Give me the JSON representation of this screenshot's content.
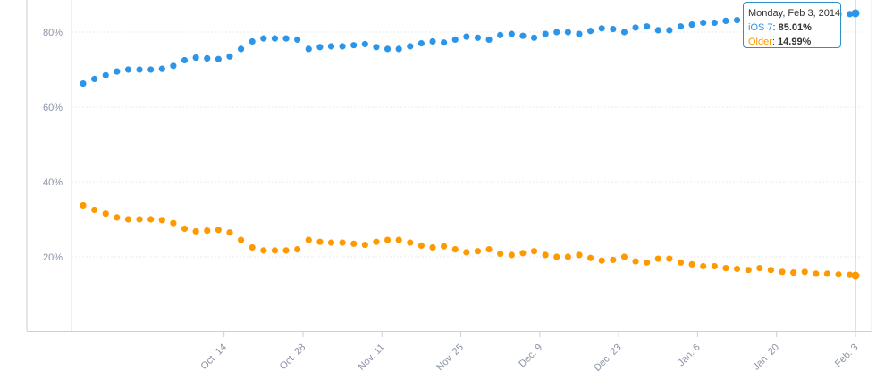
{
  "chart_data": {
    "type": "scatter",
    "title": "",
    "xlabel": "",
    "ylabel": "",
    "ylim": [
      0,
      85
    ],
    "y_ticks": [
      "20%",
      "40%",
      "60%",
      "80%"
    ],
    "x_ticks": [
      "Oct. 14",
      "Oct. 28",
      "Nov. 11",
      "Nov. 25",
      "Dec. 9",
      "Dec. 23",
      "Jan. 6",
      "Jan. 20",
      "Feb. 3"
    ],
    "x_range": [
      "2013-09-19",
      "2014-02-03"
    ],
    "grid": true,
    "colors": {
      "ios7": "#2b95e9",
      "older": "#ff9900"
    },
    "series": [
      {
        "name": "iOS 7",
        "color": "#2b95e9",
        "points": [
          [
            "2013-09-19",
            66.3
          ],
          [
            "2013-09-21",
            67.5
          ],
          [
            "2013-09-23",
            68.5
          ],
          [
            "2013-09-25",
            69.5
          ],
          [
            "2013-09-27",
            70.0
          ],
          [
            "2013-09-29",
            70.0
          ],
          [
            "2013-10-01",
            70.0
          ],
          [
            "2013-10-03",
            70.2
          ],
          [
            "2013-10-05",
            71.0
          ],
          [
            "2013-10-07",
            72.5
          ],
          [
            "2013-10-09",
            73.2
          ],
          [
            "2013-10-11",
            73.0
          ],
          [
            "2013-10-13",
            72.8
          ],
          [
            "2013-10-15",
            73.5
          ],
          [
            "2013-10-17",
            75.5
          ],
          [
            "2013-10-19",
            77.5
          ],
          [
            "2013-10-21",
            78.3
          ],
          [
            "2013-10-23",
            78.3
          ],
          [
            "2013-10-25",
            78.3
          ],
          [
            "2013-10-27",
            78.0
          ],
          [
            "2013-10-29",
            75.5
          ],
          [
            "2013-10-31",
            76.0
          ],
          [
            "2013-11-02",
            76.2
          ],
          [
            "2013-11-04",
            76.2
          ],
          [
            "2013-11-06",
            76.5
          ],
          [
            "2013-11-08",
            76.8
          ],
          [
            "2013-11-10",
            76.0
          ],
          [
            "2013-11-12",
            75.5
          ],
          [
            "2013-11-14",
            75.5
          ],
          [
            "2013-11-16",
            76.2
          ],
          [
            "2013-11-18",
            77.0
          ],
          [
            "2013-11-20",
            77.5
          ],
          [
            "2013-11-22",
            77.2
          ],
          [
            "2013-11-24",
            78.0
          ],
          [
            "2013-11-26",
            78.8
          ],
          [
            "2013-11-28",
            78.5
          ],
          [
            "2013-11-30",
            78.0
          ],
          [
            "2013-12-02",
            79.2
          ],
          [
            "2013-12-04",
            79.5
          ],
          [
            "2013-12-06",
            79.0
          ],
          [
            "2013-12-08",
            78.5
          ],
          [
            "2013-12-10",
            79.5
          ],
          [
            "2013-12-12",
            80.0
          ],
          [
            "2013-12-14",
            80.0
          ],
          [
            "2013-12-16",
            79.5
          ],
          [
            "2013-12-18",
            80.3
          ],
          [
            "2013-12-20",
            81.0
          ],
          [
            "2013-12-22",
            80.8
          ],
          [
            "2013-12-24",
            80.0
          ],
          [
            "2013-12-26",
            81.2
          ],
          [
            "2013-12-28",
            81.5
          ],
          [
            "2013-12-30",
            80.5
          ],
          [
            "2014-01-01",
            80.5
          ],
          [
            "2014-01-03",
            81.5
          ],
          [
            "2014-01-05",
            82.0
          ],
          [
            "2014-01-07",
            82.5
          ],
          [
            "2014-01-09",
            82.5
          ],
          [
            "2014-01-11",
            83.0
          ],
          [
            "2014-01-13",
            83.2
          ],
          [
            "2014-01-15",
            83.5
          ],
          [
            "2014-01-17",
            83.0
          ],
          [
            "2014-01-19",
            83.5
          ],
          [
            "2014-01-21",
            84.0
          ],
          [
            "2014-01-23",
            84.2
          ],
          [
            "2014-01-25",
            84.0
          ],
          [
            "2014-01-27",
            84.5
          ],
          [
            "2014-01-29",
            84.5
          ],
          [
            "2014-01-31",
            84.7
          ],
          [
            "2014-02-02",
            84.8
          ],
          [
            "2014-02-03",
            85.01
          ]
        ]
      },
      {
        "name": "Older",
        "color": "#ff9900",
        "points": [
          [
            "2013-09-19",
            33.7
          ],
          [
            "2013-09-21",
            32.5
          ],
          [
            "2013-09-23",
            31.5
          ],
          [
            "2013-09-25",
            30.5
          ],
          [
            "2013-09-27",
            30.0
          ],
          [
            "2013-09-29",
            30.0
          ],
          [
            "2013-10-01",
            30.0
          ],
          [
            "2013-10-03",
            29.8
          ],
          [
            "2013-10-05",
            29.0
          ],
          [
            "2013-10-07",
            27.5
          ],
          [
            "2013-10-09",
            26.8
          ],
          [
            "2013-10-11",
            27.0
          ],
          [
            "2013-10-13",
            27.2
          ],
          [
            "2013-10-15",
            26.5
          ],
          [
            "2013-10-17",
            24.5
          ],
          [
            "2013-10-19",
            22.5
          ],
          [
            "2013-10-21",
            21.7
          ],
          [
            "2013-10-23",
            21.7
          ],
          [
            "2013-10-25",
            21.7
          ],
          [
            "2013-10-27",
            22.0
          ],
          [
            "2013-10-29",
            24.5
          ],
          [
            "2013-10-31",
            24.0
          ],
          [
            "2013-11-02",
            23.8
          ],
          [
            "2013-11-04",
            23.8
          ],
          [
            "2013-11-06",
            23.5
          ],
          [
            "2013-11-08",
            23.2
          ],
          [
            "2013-11-10",
            24.0
          ],
          [
            "2013-11-12",
            24.5
          ],
          [
            "2013-11-14",
            24.5
          ],
          [
            "2013-11-16",
            23.8
          ],
          [
            "2013-11-18",
            23.0
          ],
          [
            "2013-11-20",
            22.5
          ],
          [
            "2013-11-22",
            22.8
          ],
          [
            "2013-11-24",
            22.0
          ],
          [
            "2013-11-26",
            21.2
          ],
          [
            "2013-11-28",
            21.5
          ],
          [
            "2013-11-30",
            22.0
          ],
          [
            "2013-12-02",
            20.8
          ],
          [
            "2013-12-04",
            20.5
          ],
          [
            "2013-12-06",
            21.0
          ],
          [
            "2013-12-08",
            21.5
          ],
          [
            "2013-12-10",
            20.5
          ],
          [
            "2013-12-12",
            20.0
          ],
          [
            "2013-12-14",
            20.0
          ],
          [
            "2013-12-16",
            20.5
          ],
          [
            "2013-12-18",
            19.7
          ],
          [
            "2013-12-20",
            19.0
          ],
          [
            "2013-12-22",
            19.2
          ],
          [
            "2013-12-24",
            20.0
          ],
          [
            "2013-12-26",
            18.8
          ],
          [
            "2013-12-28",
            18.5
          ],
          [
            "2013-12-30",
            19.5
          ],
          [
            "2014-01-01",
            19.5
          ],
          [
            "2014-01-03",
            18.5
          ],
          [
            "2014-01-05",
            18.0
          ],
          [
            "2014-01-07",
            17.5
          ],
          [
            "2014-01-09",
            17.5
          ],
          [
            "2014-01-11",
            17.0
          ],
          [
            "2014-01-13",
            16.8
          ],
          [
            "2014-01-15",
            16.5
          ],
          [
            "2014-01-17",
            17.0
          ],
          [
            "2014-01-19",
            16.5
          ],
          [
            "2014-01-21",
            16.0
          ],
          [
            "2014-01-23",
            15.8
          ],
          [
            "2014-01-25",
            16.0
          ],
          [
            "2014-01-27",
            15.5
          ],
          [
            "2014-01-29",
            15.5
          ],
          [
            "2014-01-31",
            15.3
          ],
          [
            "2014-02-02",
            15.2
          ],
          [
            "2014-02-03",
            14.99
          ]
        ]
      }
    ],
    "tooltip": {
      "date": "Monday, Feb 3, 2014",
      "ios7_label": "iOS 7",
      "ios7_value": "85.01%",
      "older_label": "Older",
      "older_value": "14.99%"
    }
  }
}
